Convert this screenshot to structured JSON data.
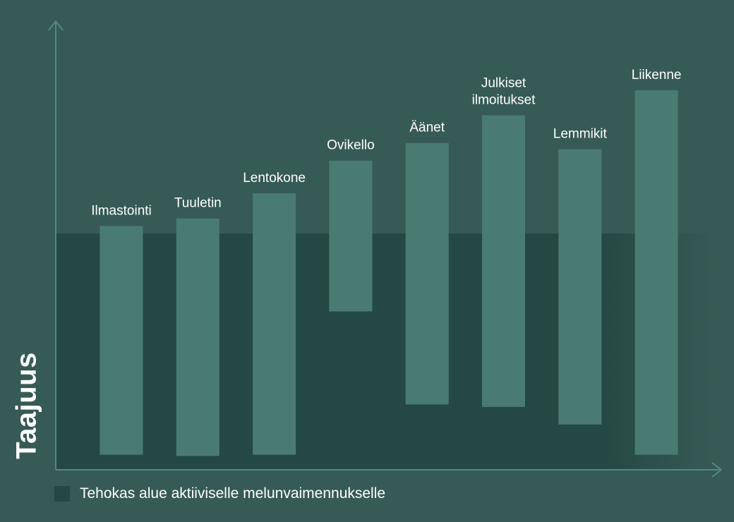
{
  "chart_data": {
    "type": "range-bar",
    "ylabel": "Taajuus",
    "xlabel": "",
    "ylim": [
      0,
      100
    ],
    "categories": [
      {
        "label": [
          "Ilmastointi"
        ],
        "low": 6,
        "high": 97
      },
      {
        "label": [
          "Tuuletin"
        ],
        "low": 5.5,
        "high": 100
      },
      {
        "label": [
          "Lentokone"
        ],
        "low": 6,
        "high": 110
      },
      {
        "label": [
          "Ovikello"
        ],
        "low": 63,
        "high": 123
      },
      {
        "label": [
          "Äänet"
        ],
        "low": 26,
        "high": 130
      },
      {
        "label": [
          "Julkiset",
          "ilmoitukset"
        ],
        "low": 25,
        "high": 141
      },
      {
        "label": [
          "Lemmikit"
        ],
        "low": 18,
        "high": 127.5
      },
      {
        "label": [
          "Liikenne"
        ],
        "low": 6,
        "high": 151
      }
    ],
    "effective_range": {
      "low": 0,
      "high": 94,
      "legend_label": "Tehokas alue aktiiviselle melunvaimennukselle"
    },
    "colors": {
      "background": "#365a55",
      "effective_area": "#244843",
      "bar": "#4a7b72",
      "axis": "#4f8a80",
      "text": "#ffffff"
    }
  }
}
